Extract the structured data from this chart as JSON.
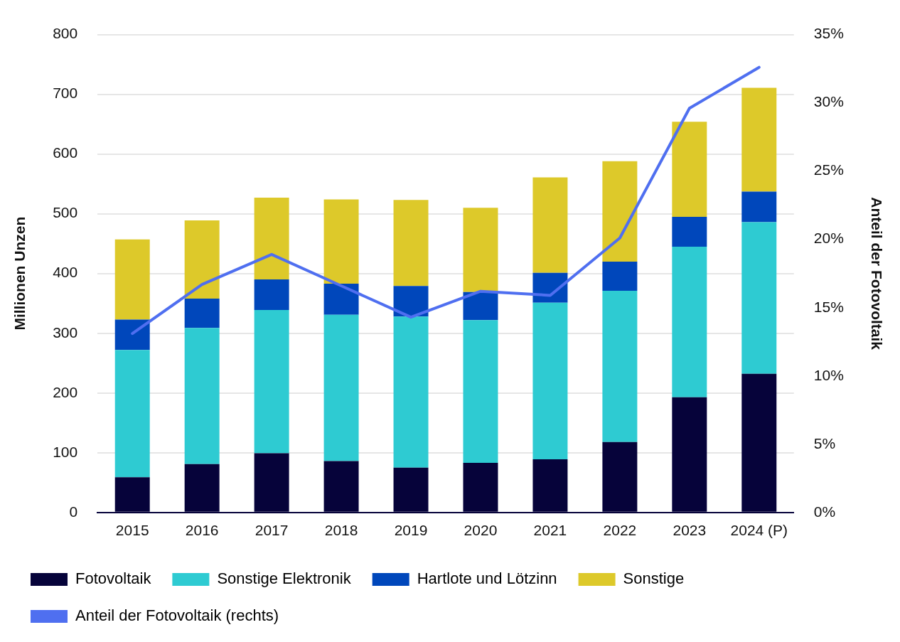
{
  "chart_data": {
    "type": "bar",
    "ylabel": "Millionen Unzen",
    "y2label": "Anteil der Fotovoltaik",
    "categories": [
      "2015",
      "2016",
      "2017",
      "2018",
      "2019",
      "2020",
      "2021",
      "2022",
      "2023",
      "2024 (P)"
    ],
    "stacked": true,
    "series": [
      {
        "name": "Fotovoltaik",
        "color": "#06033a",
        "values": [
          59,
          81,
          99,
          86,
          75,
          83,
          89,
          118,
          193,
          232
        ]
      },
      {
        "name": "Sonstige Elektronik",
        "color": "#2ecbd2",
        "values": [
          213,
          228,
          240,
          245,
          253,
          239,
          262,
          253,
          252,
          254
        ]
      },
      {
        "name": "Hartlote und Lötzinn",
        "color": "#0047bb",
        "values": [
          51,
          49,
          51,
          52,
          51,
          47,
          50,
          49,
          50,
          51
        ]
      },
      {
        "name": "Sonstige",
        "color": "#ddc92a",
        "values": [
          134,
          131,
          137,
          141,
          144,
          141,
          160,
          168,
          159,
          174
        ]
      },
      {
        "name": "Anteil der Fotovoltaik (rechts)",
        "type": "line",
        "axis": "y2",
        "color": "#4f6ff0",
        "values": [
          13.1,
          16.7,
          18.9,
          16.6,
          14.3,
          16.2,
          15.9,
          20.1,
          29.6,
          32.6
        ]
      }
    ],
    "ylim": [
      0,
      800
    ],
    "yticks": [
      0,
      100,
      200,
      300,
      400,
      500,
      600,
      700,
      800
    ],
    "y2lim": [
      0,
      35
    ],
    "y2ticks": [
      {
        "value": 0,
        "label": "0%"
      },
      {
        "value": 5,
        "label": "5%"
      },
      {
        "value": 10,
        "label": "10%"
      },
      {
        "value": 15,
        "label": "15%"
      },
      {
        "value": 20,
        "label": "20%"
      },
      {
        "value": 25,
        "label": "25%"
      },
      {
        "value": 30,
        "label": "30%"
      },
      {
        "value": 35,
        "label": "35%"
      }
    ],
    "grid": "y",
    "legend": "bottom",
    "marker": "none",
    "line_style": "solid"
  }
}
